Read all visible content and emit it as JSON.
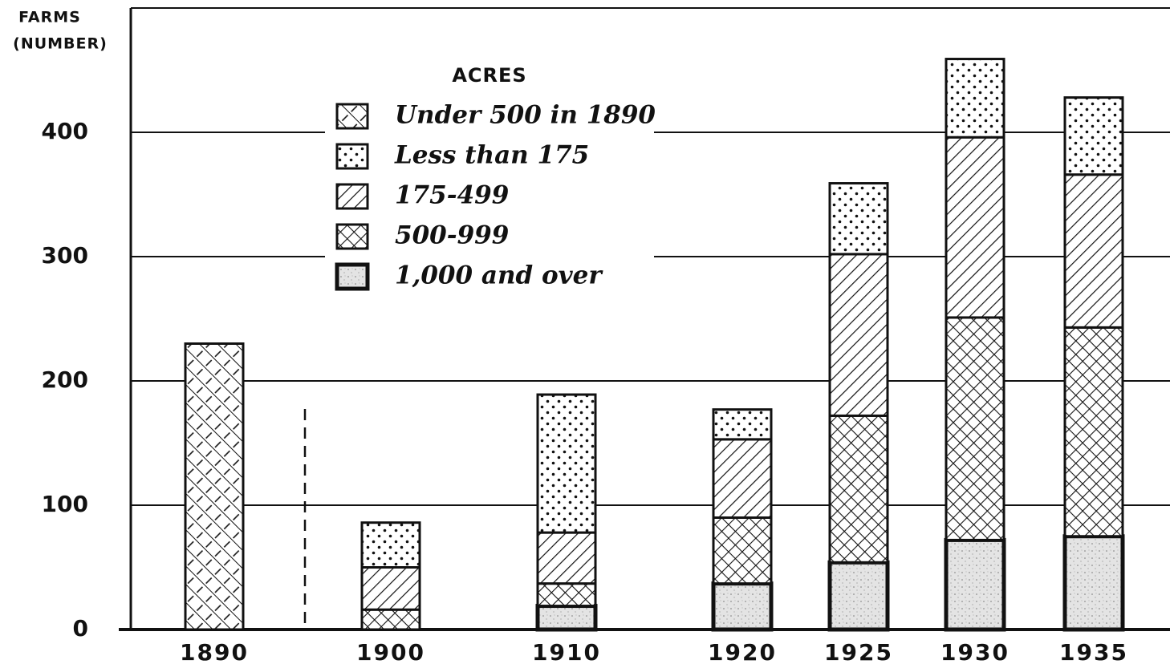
{
  "chart_data": {
    "type": "stacked_bar",
    "y_label_lines": [
      "FARMS",
      "(NUMBER)"
    ],
    "legend_title": "ACRES",
    "categories": [
      "1890",
      "1900",
      "1910",
      "1920",
      "1925",
      "1930",
      "1935"
    ],
    "series": [
      {
        "name": "1,000 and over",
        "pattern": "stipple",
        "values": [
          null,
          null,
          19,
          37,
          54,
          72,
          75
        ]
      },
      {
        "name": "500-999",
        "pattern": "crosshatch",
        "values": [
          null,
          16,
          18,
          53,
          118,
          179,
          168
        ]
      },
      {
        "name": "175-499",
        "pattern": "hatch",
        "values": [
          null,
          34,
          41,
          63,
          130,
          145,
          123
        ]
      },
      {
        "name": "Less than 175",
        "pattern": "dots",
        "values": [
          null,
          36,
          111,
          24,
          57,
          63,
          62
        ]
      },
      {
        "name": "Under 500 in 1890",
        "pattern": "diagcross",
        "values": [
          230,
          null,
          null,
          null,
          null,
          null,
          null
        ]
      }
    ],
    "ylim": [
      0,
      500
    ],
    "yticks": [
      0,
      100,
      200,
      300,
      400
    ],
    "grid": true
  }
}
